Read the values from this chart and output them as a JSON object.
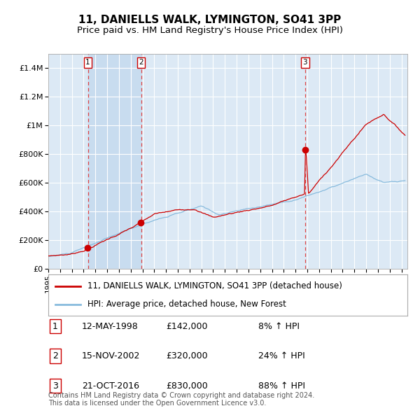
{
  "title": "11, DANIELLS WALK, LYMINGTON, SO41 3PP",
  "subtitle": "Price paid vs. HM Land Registry's House Price Index (HPI)",
  "ylim": [
    0,
    1500000
  ],
  "xlim_start": 1995.0,
  "xlim_end": 2025.5,
  "yticks": [
    0,
    200000,
    400000,
    600000,
    800000,
    1000000,
    1200000,
    1400000
  ],
  "ytick_labels": [
    "£0",
    "£200K",
    "£400K",
    "£600K",
    "£800K",
    "£1M",
    "£1.2M",
    "£1.4M"
  ],
  "background_color": "#ffffff",
  "plot_bg_color": "#dce9f5",
  "grid_color": "#ffffff",
  "sale_color": "#cc0000",
  "hpi_color": "#88bbdd",
  "dashed_line_color": "#dd4444",
  "shade_color": "#c8dcef",
  "purchases": [
    {
      "num": 1,
      "date_decimal": 1998.36,
      "price": 142000,
      "label": "1",
      "date_str": "12-MAY-1998",
      "pct": "8%"
    },
    {
      "num": 2,
      "date_decimal": 2002.88,
      "price": 320000,
      "label": "2",
      "date_str": "15-NOV-2002",
      "pct": "24%"
    },
    {
      "num": 3,
      "date_decimal": 2016.81,
      "price": 830000,
      "label": "3",
      "date_str": "21-OCT-2016",
      "pct": "88%"
    }
  ],
  "legend_entries": [
    "11, DANIELLS WALK, LYMINGTON, SO41 3PP (detached house)",
    "HPI: Average price, detached house, New Forest"
  ],
  "footer_text": "Contains HM Land Registry data © Crown copyright and database right 2024.\nThis data is licensed under the Open Government Licence v3.0.",
  "title_fontsize": 11,
  "subtitle_fontsize": 9.5,
  "tick_label_fontsize": 8,
  "legend_fontsize": 8.5,
  "footer_fontsize": 7,
  "table_fontsize": 9
}
